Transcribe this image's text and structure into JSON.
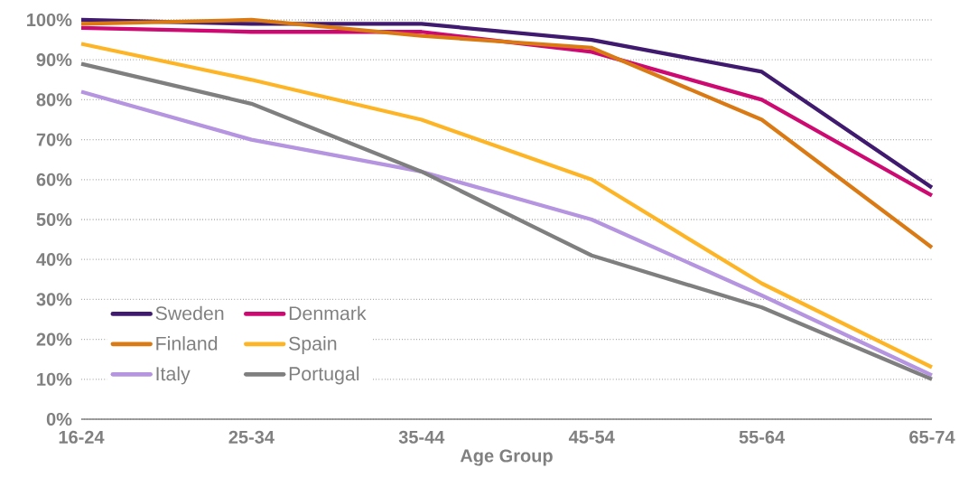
{
  "chart_data": {
    "type": "line",
    "xlabel": "Age Group",
    "categories": [
      "16-24",
      "25-34",
      "35-44",
      "45-54",
      "55-64",
      "65-74"
    ],
    "series": [
      {
        "name": "Sweden",
        "color": "#3f1a6e",
        "values": [
          100,
          99,
          99,
          95,
          87,
          58
        ]
      },
      {
        "name": "Denmark",
        "color": "#cc0a72",
        "values": [
          98,
          97,
          97,
          92,
          80,
          56
        ]
      },
      {
        "name": "Finland",
        "color": "#d97a14",
        "values": [
          99,
          100,
          96,
          93,
          75,
          43
        ]
      },
      {
        "name": "Spain",
        "color": "#fdb526",
        "values": [
          94,
          85,
          75,
          60,
          34,
          13
        ]
      },
      {
        "name": "Italy",
        "color": "#b594e0",
        "values": [
          82,
          70,
          62,
          50,
          31,
          11
        ]
      },
      {
        "name": "Portugal",
        "color": "#7f7f7f",
        "values": [
          89,
          79,
          62,
          41,
          28,
          10
        ]
      }
    ],
    "ylim": [
      0,
      100
    ],
    "yticks": [
      {
        "value": 0,
        "label": "0%"
      },
      {
        "value": 10,
        "label": "10%"
      },
      {
        "value": 20,
        "label": "20%"
      },
      {
        "value": 30,
        "label": "30%"
      },
      {
        "value": 40,
        "label": "40%"
      },
      {
        "value": 50,
        "label": "50%"
      },
      {
        "value": 60,
        "label": "60%"
      },
      {
        "value": 70,
        "label": "70%"
      },
      {
        "value": 80,
        "label": "80%"
      },
      {
        "value": 90,
        "label": "90%"
      },
      {
        "value": 100,
        "label": "100%"
      }
    ],
    "grid": "y",
    "legend": "bottom left",
    "marker": "none",
    "line_style": "solid"
  }
}
